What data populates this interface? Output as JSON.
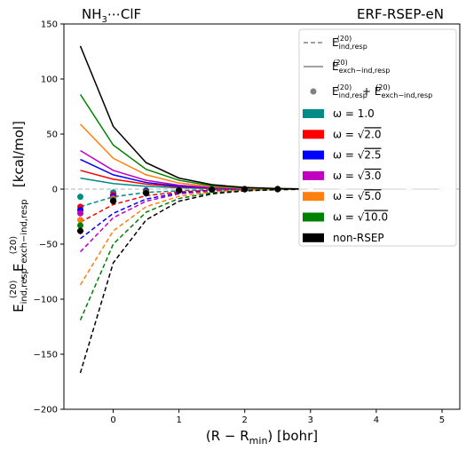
{
  "title_left": {
    "base": "NH",
    "sub": "3",
    "rest": "⋯ClF"
  },
  "title_right": "ERF-RSEP-eN",
  "chart_data": {
    "type": "line",
    "xlabel": {
      "pre": "(R − R",
      "sub": "min",
      "post": ") [bohr]"
    },
    "ylabel": {
      "pre": "E",
      "sub1": "ind,resp",
      "sup1": "(20)",
      "sep": ", E",
      "sub2": "exch−ind,resp",
      "sup2": "(20)",
      "post": " [kcal/mol]"
    },
    "xlim": [
      -0.75,
      5.27
    ],
    "ylim": [
      -200,
      150
    ],
    "xticks": [
      0,
      1,
      2,
      3,
      4,
      5
    ],
    "yticks": [
      -200,
      -150,
      -100,
      -50,
      0,
      50,
      100,
      150
    ],
    "x": [
      -0.5,
      0,
      0.5,
      1,
      1.5,
      2,
      2.5,
      3,
      3.5,
      4,
      4.5,
      5
    ],
    "series": [
      {
        "name": "ω = 1.0",
        "color": "#008b8b",
        "exch": [
          10,
          5,
          2.5,
          1.2,
          0.5,
          0.2,
          0.05,
          0,
          0,
          0,
          0,
          0
        ],
        "ind": [
          -16,
          -7,
          -3,
          -1.5,
          -0.6,
          -0.25,
          -0.1,
          0,
          0,
          0,
          0,
          0
        ],
        "sum": [
          -7,
          -3,
          -1,
          -0.3,
          -0.1,
          0,
          0,
          0,
          0,
          0,
          0,
          0
        ]
      },
      {
        "name": "ω = √2.0",
        "color": "#ff0000",
        "exch": [
          17,
          9,
          4.5,
          2,
          0.8,
          0.3,
          0.1,
          0,
          0,
          0,
          0,
          0
        ],
        "ind": [
          -30,
          -14,
          -6,
          -2.5,
          -1,
          -0.4,
          -0.15,
          0,
          0,
          0,
          0,
          0
        ],
        "sum": [
          -16,
          -5,
          -1.8,
          -0.6,
          -0.2,
          0,
          0,
          0,
          0,
          0,
          0,
          0
        ]
      },
      {
        "name": "ω = √2.5",
        "color": "#0000ff",
        "exch": [
          27,
          13,
          6,
          2.6,
          1.1,
          0.4,
          0.1,
          0,
          0,
          0,
          0,
          0
        ],
        "ind": [
          -45,
          -22,
          -9,
          -3.5,
          -1.4,
          -0.5,
          -0.2,
          0,
          0,
          0,
          0,
          0
        ],
        "sum": [
          -19,
          -6.5,
          -2.2,
          -0.8,
          -0.3,
          -0.1,
          0,
          0,
          0,
          0,
          0,
          0
        ]
      },
      {
        "name": "ω = √3.0",
        "color": "#bf00bf",
        "exch": [
          35,
          17,
          8,
          3.5,
          1.4,
          0.5,
          0.2,
          0,
          0,
          0,
          0,
          0
        ],
        "ind": [
          -57,
          -26,
          -11,
          -4.3,
          -1.7,
          -0.6,
          -0.2,
          0,
          0,
          0,
          0,
          0
        ],
        "sum": [
          -22,
          -8,
          -2.8,
          -1,
          -0.3,
          -0.1,
          0,
          0,
          0,
          0,
          0,
          0
        ]
      },
      {
        "name": "ω = √5.0",
        "color": "#ff7f0e",
        "exch": [
          59,
          28,
          13,
          5.5,
          2.2,
          0.8,
          0.3,
          0,
          0,
          0,
          0,
          0
        ],
        "ind": [
          -87,
          -38,
          -16,
          -6.5,
          -2.5,
          -0.9,
          -0.3,
          0,
          0,
          0,
          0,
          0
        ],
        "sum": [
          -28,
          -9,
          -3,
          -1,
          -0.3,
          -0.1,
          0,
          0,
          0,
          0,
          0,
          0
        ]
      },
      {
        "name": "ω = √10.0",
        "color": "#008000",
        "exch": [
          86,
          40,
          18,
          8,
          3,
          1.1,
          0.4,
          0.1,
          0,
          0,
          0,
          0
        ],
        "ind": [
          -119,
          -50,
          -21,
          -8.5,
          -3.3,
          -1.2,
          -0.4,
          0,
          0,
          0,
          0,
          0
        ],
        "sum": [
          -33,
          -10,
          -3.2,
          -1.1,
          -0.3,
          -0.1,
          0,
          0,
          0,
          0,
          0,
          0
        ]
      },
      {
        "name": "non-RSEP",
        "color": "#000000",
        "exch": [
          130,
          57,
          24,
          10,
          4,
          1.5,
          0.5,
          0.1,
          0,
          0,
          0,
          0
        ],
        "ind": [
          -167,
          -67,
          -28,
          -11,
          -4.3,
          -1.6,
          -0.5,
          -0.1,
          0,
          0,
          0,
          0
        ],
        "sum": [
          -38,
          -11,
          -3.8,
          -1.3,
          -0.4,
          -0.1,
          0,
          0,
          0,
          0,
          0,
          0
        ]
      }
    ],
    "legend": {
      "placement": "top-right",
      "style_entries": [
        {
          "label_base": "E",
          "label_sub": "ind,resp",
          "label_sup": "(20)",
          "style": "dashed",
          "color": "#808080"
        },
        {
          "label_base": "E",
          "label_sub": "exch−ind,resp",
          "label_sup": "(20)",
          "style": "solid",
          "color": "#808080"
        },
        {
          "label_base": "E",
          "label_sub": "ind,resp",
          "label_sup": "(20)",
          "label_mid": " + E",
          "label_sub2": "exch−ind,resp",
          "label_sup2": "(20)",
          "style": "marker",
          "color": "#808080"
        }
      ]
    },
    "grid": false,
    "zero_line": {
      "style": "dashed",
      "color": "#cccccc"
    }
  }
}
